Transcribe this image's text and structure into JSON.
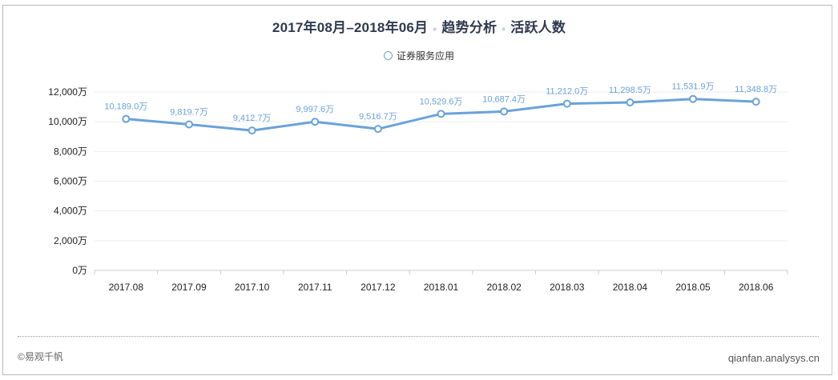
{
  "header": {
    "title_parts": [
      "2017年08月–2018年06月",
      "趋势分析",
      "活跃人数"
    ],
    "separator": "•"
  },
  "legend": {
    "label": "证券服务应用",
    "color": "#6aa2da"
  },
  "footer": {
    "left": "©易观千帆",
    "right": "qianfan.analysys.cn"
  },
  "chart_data": {
    "type": "line",
    "title": "2017年08月–2018年06月 • 趋势分析 • 活跃人数",
    "xlabel": "",
    "ylabel": "",
    "unit": "万",
    "categories": [
      "2017.08",
      "2017.09",
      "2017.10",
      "2017.11",
      "2017.12",
      "2018.01",
      "2018.02",
      "2018.03",
      "2018.04",
      "2018.05",
      "2018.06"
    ],
    "series": [
      {
        "name": "证券服务应用",
        "color": "#6aa2da",
        "values": [
          10189.0,
          9819.7,
          9412.7,
          9997.6,
          9516.7,
          10529.6,
          10687.4,
          11212.0,
          11298.5,
          11531.9,
          11348.8
        ],
        "labels": [
          "10,189.0万",
          "9,819.7万",
          "9,412.7万",
          "9,997.6万",
          "9,516.7万",
          "10,529.6万",
          "10,687.4万",
          "11,212.0万",
          "11,298.5万",
          "11,531.9万",
          "11,348.8万"
        ]
      }
    ],
    "ylim": [
      0,
      12000
    ],
    "yticks": [
      0,
      2000,
      4000,
      6000,
      8000,
      10000,
      12000
    ],
    "ytick_labels": [
      "0万",
      "2,000万",
      "4,000万",
      "6,000万",
      "8,000万",
      "10,000万",
      "12,000万"
    ],
    "grid": true,
    "legend_position": "top"
  }
}
